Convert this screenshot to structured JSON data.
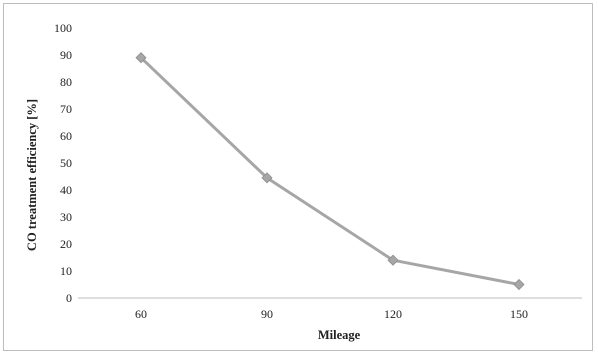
{
  "chart_data": {
    "type": "line",
    "title": "",
    "xlabel": "Mileage",
    "ylabel": "CO treatment efficiency [%]",
    "categories": [
      "60",
      "90",
      "120",
      "150"
    ],
    "series": [
      {
        "values": [
          89,
          44.5,
          14,
          5
        ]
      }
    ],
    "ylim": [
      0,
      100
    ],
    "yticks": [
      "0",
      "10",
      "20",
      "30",
      "40",
      "50",
      "60",
      "70",
      "80",
      "90",
      "100"
    ],
    "grid": false,
    "legend": "none",
    "line_color": "#a6a6a6",
    "marker_color": "#a6a6a6"
  }
}
